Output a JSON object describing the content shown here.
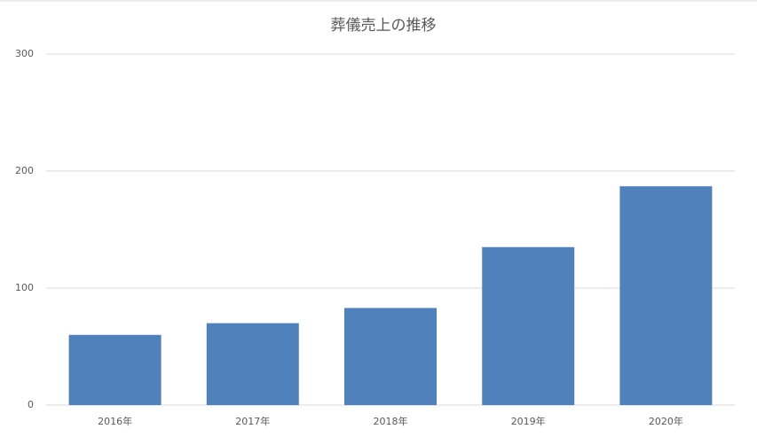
{
  "chart_data": {
    "type": "bar",
    "title": "葬儀売上の推移",
    "categories": [
      "2016年",
      "2017年",
      "2018年",
      "2019年",
      "2020年"
    ],
    "values": [
      60,
      70,
      83,
      135,
      187
    ],
    "color": "#4f81bd",
    "ylim": [
      0,
      300
    ],
    "yticks": [
      0,
      100,
      200,
      300
    ],
    "grid": true
  }
}
